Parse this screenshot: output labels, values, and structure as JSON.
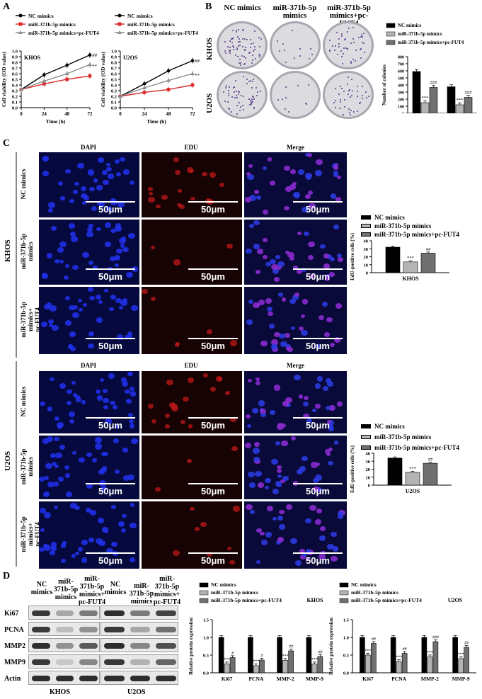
{
  "panels": {
    "A": "A",
    "B": "B",
    "C": "C",
    "D": "D"
  },
  "panelA": {
    "legend": [
      "NC mimics",
      "miR-371b-5p mimics",
      "miR-371b-5p mimics+pc-FUT4"
    ],
    "ylabel": "Cell viability (OD value)",
    "xlabel": "Time (h)",
    "charts": [
      {
        "label": "KHOS",
        "sig_top": "##",
        "sig_bottom": "**"
      },
      {
        "label": "U2OS",
        "sig_top": "##",
        "sig_bottom": "**"
      }
    ]
  },
  "panelB": {
    "col_headers": [
      "NC mimics",
      "miR-371b-5p\nmimics",
      "miR-371b-5p\nmimics+pc-FUT4"
    ],
    "row_labels": [
      "KHOS",
      "U2OS"
    ],
    "legend": [
      "NC mimics",
      "miR-371b-5p mimics",
      "miR-371b-5p mimics+pc-FUT4"
    ],
    "ylabel": "Number of colonies"
  },
  "panelC": {
    "col_headers": [
      "DAPI",
      "EDU",
      "Merge"
    ],
    "scale": "50μm",
    "cell_lines": [
      "KHOS",
      "U2OS"
    ],
    "row_labels": [
      "NC mimics",
      "miR-371b-5p\nmimics",
      "miR-371b-5p\nmimics+\npc-FUT4"
    ],
    "legend": [
      "NC mimics",
      "miR-371b-5p mimics",
      "miR-371b-5p mimics+pc-FUT4"
    ],
    "ylabel": "EdU-positive cells (%)"
  },
  "panelD": {
    "blot_headers": [
      "NC\nmimics",
      "miR-\n371b-5p\nmimics",
      "miR-\n371b-5p\nmimics+\npc-FUT4",
      "NC\nmimics",
      "miR-371b-5p\nmimics",
      "miR-\n371b-5p\nmimics+\npc-FUT4"
    ],
    "proteins": [
      "Ki67",
      "PCNA",
      "MMP2",
      "MMP9",
      "Actin"
    ],
    "cell_lines": [
      "KHOS",
      "U2OS"
    ],
    "legend": [
      "NC mimics",
      "miR-371b-5p mimics",
      "miR-371b-5p mimics+pc-FUT4"
    ],
    "ylabel": "Relative protein expression"
  },
  "colors": {
    "nc": "#000000",
    "mir": "#d92b2b",
    "fut": "#8c8c8c",
    "bar_mir": "#b4b4b4",
    "bar_fut": "#707070"
  },
  "chart_data": [
    {
      "type": "line",
      "title": "KHOS",
      "xlabel": "Time (h)",
      "ylabel": "Cell viability (OD value)",
      "x": [
        0,
        24,
        48,
        72
      ],
      "ylim": [
        0,
        1.0
      ],
      "yticks": [
        0,
        0.1,
        0.2,
        0.3,
        0.4,
        0.5,
        0.6,
        0.7,
        0.8,
        0.9,
        1.0
      ],
      "series": [
        {
          "name": "NC mimics",
          "values": [
            0.32,
            0.58,
            0.75,
            0.93
          ]
        },
        {
          "name": "miR-371b-5p mimics",
          "values": [
            0.32,
            0.42,
            0.5,
            0.56
          ]
        },
        {
          "name": "miR-371b-5p mimics+pc-FUT4",
          "values": [
            0.32,
            0.47,
            0.6,
            0.76
          ]
        }
      ],
      "annotations": [
        "##",
        "**"
      ]
    },
    {
      "type": "line",
      "title": "U2OS",
      "xlabel": "Time (h)",
      "ylabel": "Cell viability (OD value)",
      "x": [
        0,
        24,
        48,
        72
      ],
      "ylim": [
        0,
        1.0
      ],
      "yticks": [
        0,
        0.1,
        0.2,
        0.3,
        0.4,
        0.5,
        0.6,
        0.7,
        0.8,
        0.9,
        1.0
      ],
      "series": [
        {
          "name": "NC mimics",
          "values": [
            0.2,
            0.42,
            0.65,
            0.83
          ]
        },
        {
          "name": "miR-371b-5p mimics",
          "values": [
            0.2,
            0.27,
            0.32,
            0.4
          ]
        },
        {
          "name": "miR-371b-5p mimics+pc-FUT4",
          "values": [
            0.2,
            0.35,
            0.48,
            0.6
          ]
        }
      ],
      "annotations": [
        "##",
        "**"
      ]
    },
    {
      "type": "bar",
      "ylabel": "Number of colonies",
      "categories": [
        "KHOS",
        "U2OS"
      ],
      "ylim": [
        0,
        800
      ],
      "yticks": [
        0,
        100,
        200,
        300,
        400,
        500,
        600,
        700,
        800
      ],
      "series": [
        {
          "name": "NC mimics",
          "values": [
            590,
            375
          ]
        },
        {
          "name": "miR-371b-5p mimics",
          "values": [
            150,
            120
          ]
        },
        {
          "name": "miR-371b-5p mimics+pc-FUT4",
          "values": [
            365,
            225
          ]
        }
      ],
      "annotations": [
        [
          "",
          "***",
          "###"
        ],
        [
          "",
          "***",
          "###"
        ]
      ]
    },
    {
      "type": "bar",
      "ylabel": "EdU-positive cells (%)",
      "categories": [
        "KHOS"
      ],
      "ylim": [
        0,
        40
      ],
      "yticks": [
        0,
        10,
        20,
        30,
        40
      ],
      "series": [
        {
          "name": "NC mimics",
          "values": [
            32
          ]
        },
        {
          "name": "miR-371b-5p mimics",
          "values": [
            13.5
          ]
        },
        {
          "name": "miR-371b-5p mimics+pc-FUT4",
          "values": [
            24.5
          ]
        }
      ],
      "annotations": [
        [
          "",
          "***",
          "##"
        ]
      ]
    },
    {
      "type": "bar",
      "ylabel": "EdU-positive cells (%)",
      "categories": [
        "U2OS"
      ],
      "ylim": [
        0,
        40
      ],
      "yticks": [
        0,
        10,
        20,
        30,
        40
      ],
      "series": [
        {
          "name": "NC mimics",
          "values": [
            34
          ]
        },
        {
          "name": "miR-371b-5p mimics",
          "values": [
            16
          ]
        },
        {
          "name": "miR-371b-5p mimics+pc-FUT4",
          "values": [
            27.5
          ]
        }
      ],
      "annotations": [
        [
          "",
          "***",
          "##"
        ]
      ]
    },
    {
      "type": "bar",
      "title": "KHOS",
      "ylabel": "Relative protein expression",
      "categories": [
        "Ki67",
        "PCNA",
        "MMP-2",
        "MMP-9"
      ],
      "ylim": [
        0,
        1.5
      ],
      "yticks": [
        0,
        0.5,
        1.0,
        1.5
      ],
      "series": [
        {
          "name": "NC mimics",
          "values": [
            1.0,
            1.0,
            1.0,
            1.0
          ]
        },
        {
          "name": "miR-371b-5p mimics",
          "values": [
            0.25,
            0.2,
            0.35,
            0.25
          ]
        },
        {
          "name": "miR-371b-5p mimics+pc-FUT4",
          "values": [
            0.43,
            0.36,
            0.62,
            0.46
          ]
        }
      ],
      "annotations": [
        [
          "",
          "***",
          "#"
        ],
        [
          "",
          "***",
          "#"
        ],
        [
          "",
          "***",
          "##"
        ],
        [
          "",
          "***",
          "##"
        ]
      ]
    },
    {
      "type": "bar",
      "title": "U2OS",
      "ylabel": "Relative protein expression",
      "categories": [
        "Ki67",
        "PCNA",
        "MMP-2",
        "MMP-9"
      ],
      "ylim": [
        0,
        1.5
      ],
      "yticks": [
        0,
        0.5,
        1.0,
        1.5
      ],
      "series": [
        {
          "name": "NC mimics",
          "values": [
            1.0,
            1.0,
            1.0,
            1.0
          ]
        },
        {
          "name": "miR-371b-5p mimics",
          "values": [
            0.5,
            0.32,
            0.45,
            0.4
          ]
        },
        {
          "name": "miR-371b-5p mimics+pc-FUT4",
          "values": [
            0.83,
            0.55,
            0.88,
            0.72
          ]
        }
      ],
      "annotations": [
        [
          "",
          "***",
          "##"
        ],
        [
          "",
          "***",
          "##"
        ],
        [
          "",
          "***",
          "###"
        ],
        [
          "",
          "***",
          "##"
        ]
      ]
    }
  ]
}
